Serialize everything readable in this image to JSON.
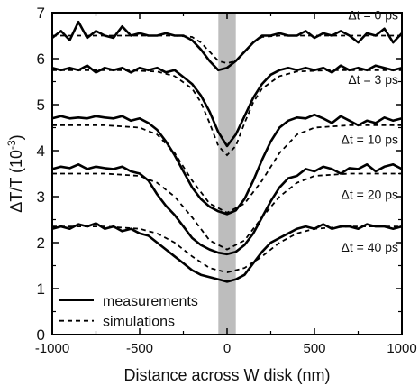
{
  "chart_data": {
    "type": "line",
    "title": "",
    "xlabel": "Distance across W disk (nm)",
    "ylabel_main": "ΔT/T (10",
    "ylabel_exp": "-3",
    "ylabel_close": ")",
    "xlim": [
      -1000,
      1000
    ],
    "ylim": [
      0,
      7
    ],
    "x_ticks": [
      -1000,
      -500,
      0,
      500,
      1000
    ],
    "y_ticks": [
      0,
      1,
      2,
      3,
      4,
      5,
      6,
      7
    ],
    "x_tick_labels": [
      "-1000",
      "-500",
      "0",
      "500",
      "1000"
    ],
    "y_tick_labels": [
      "0",
      "1",
      "2",
      "3",
      "4",
      "5",
      "6",
      "7"
    ],
    "shaded_band": {
      "x_start": -50,
      "x_end": 50,
      "color": "#bdbdbd"
    },
    "legend": {
      "placement": "bottom-left",
      "entries": [
        {
          "label": "measurements",
          "style": "solid"
        },
        {
          "label": "simulations",
          "style": "dashed"
        }
      ]
    },
    "series": [
      {
        "label": "Δt = 0 ps",
        "measurement": {
          "x": [
            -1000,
            -950,
            -900,
            -850,
            -800,
            -750,
            -700,
            -650,
            -600,
            -550,
            -500,
            -450,
            -400,
            -350,
            -300,
            -250,
            -200,
            -150,
            -100,
            -50,
            0,
            50,
            100,
            150,
            200,
            250,
            300,
            350,
            400,
            450,
            500,
            550,
            600,
            650,
            700,
            750,
            800,
            850,
            900,
            950,
            1000
          ],
          "y": [
            6.45,
            6.6,
            6.4,
            6.8,
            6.45,
            6.6,
            6.5,
            6.45,
            6.7,
            6.5,
            6.55,
            6.5,
            6.5,
            6.55,
            6.5,
            6.5,
            6.4,
            6.2,
            5.95,
            5.75,
            5.8,
            5.95,
            6.15,
            6.35,
            6.5,
            6.5,
            6.55,
            6.5,
            6.5,
            6.6,
            6.45,
            6.55,
            6.5,
            6.6,
            6.5,
            6.35,
            6.55,
            6.5,
            6.65,
            6.35,
            6.55
          ]
        },
        "simulation": {
          "x": [
            -1000,
            -500,
            -300,
            -200,
            -150,
            -100,
            -50,
            0,
            50,
            100,
            150,
            200,
            300,
            500,
            1000
          ],
          "y": [
            6.5,
            6.5,
            6.5,
            6.47,
            6.35,
            6.15,
            5.95,
            5.9,
            5.95,
            6.15,
            6.35,
            6.47,
            6.5,
            6.5,
            6.5
          ]
        }
      },
      {
        "label": "Δt = 3 ps",
        "measurement": {
          "x": [
            -1000,
            -950,
            -900,
            -850,
            -800,
            -750,
            -700,
            -650,
            -600,
            -550,
            -500,
            -450,
            -400,
            -350,
            -300,
            -250,
            -200,
            -150,
            -100,
            -50,
            0,
            50,
            100,
            150,
            200,
            250,
            300,
            350,
            400,
            450,
            500,
            550,
            600,
            650,
            700,
            750,
            800,
            850,
            900,
            950,
            1000
          ],
          "y": [
            5.8,
            5.75,
            5.8,
            5.75,
            5.85,
            5.7,
            5.8,
            5.75,
            5.8,
            5.7,
            5.8,
            5.75,
            5.8,
            5.7,
            5.75,
            5.6,
            5.45,
            5.2,
            4.85,
            4.4,
            4.1,
            4.35,
            4.75,
            5.15,
            5.45,
            5.65,
            5.75,
            5.8,
            5.75,
            5.8,
            5.75,
            5.8,
            5.7,
            5.85,
            5.75,
            5.8,
            5.75,
            5.85,
            5.8,
            5.75,
            5.8
          ]
        },
        "simulation": {
          "x": [
            -1000,
            -600,
            -400,
            -300,
            -200,
            -150,
            -100,
            -50,
            0,
            50,
            100,
            150,
            200,
            300,
            400,
            600,
            1000
          ],
          "y": [
            5.75,
            5.75,
            5.72,
            5.62,
            5.35,
            5.05,
            4.6,
            4.1,
            3.9,
            4.1,
            4.6,
            5.05,
            5.35,
            5.62,
            5.72,
            5.75,
            5.75
          ]
        }
      },
      {
        "label": "Δt = 10 ps",
        "measurement": {
          "x": [
            -1000,
            -950,
            -900,
            -850,
            -800,
            -750,
            -700,
            -650,
            -600,
            -550,
            -500,
            -450,
            -400,
            -350,
            -300,
            -250,
            -200,
            -150,
            -100,
            -50,
            0,
            50,
            100,
            150,
            200,
            250,
            300,
            350,
            400,
            450,
            500,
            550,
            600,
            650,
            700,
            750,
            800,
            850,
            900,
            950,
            1000
          ],
          "y": [
            4.7,
            4.75,
            4.7,
            4.72,
            4.7,
            4.75,
            4.72,
            4.7,
            4.75,
            4.65,
            4.7,
            4.6,
            4.45,
            4.2,
            3.9,
            3.55,
            3.2,
            2.95,
            2.78,
            2.68,
            2.62,
            2.7,
            2.95,
            3.35,
            3.8,
            4.2,
            4.5,
            4.65,
            4.72,
            4.7,
            4.78,
            4.7,
            4.6,
            4.75,
            4.65,
            4.55,
            4.65,
            4.6,
            4.72,
            4.65,
            4.7
          ]
        },
        "simulation": {
          "x": [
            -1000,
            -700,
            -500,
            -400,
            -300,
            -200,
            -100,
            0,
            100,
            200,
            300,
            400,
            500,
            700,
            1000
          ],
          "y": [
            4.55,
            4.55,
            4.5,
            4.35,
            3.95,
            3.35,
            2.85,
            2.65,
            2.85,
            3.35,
            3.95,
            4.35,
            4.5,
            4.55,
            4.55
          ]
        }
      },
      {
        "label": "Δt = 20 ps",
        "measurement": {
          "x": [
            -1000,
            -950,
            -900,
            -850,
            -800,
            -750,
            -700,
            -650,
            -600,
            -550,
            -500,
            -450,
            -400,
            -350,
            -300,
            -250,
            -200,
            -150,
            -100,
            -50,
            0,
            50,
            100,
            150,
            200,
            250,
            300,
            350,
            400,
            450,
            500,
            550,
            600,
            650,
            700,
            750,
            800,
            850,
            900,
            950,
            1000
          ],
          "y": [
            3.6,
            3.65,
            3.62,
            3.7,
            3.6,
            3.65,
            3.62,
            3.6,
            3.65,
            3.55,
            3.5,
            3.35,
            3.05,
            2.8,
            2.6,
            2.35,
            2.1,
            1.95,
            1.85,
            1.78,
            1.75,
            1.8,
            1.95,
            2.2,
            2.55,
            2.9,
            3.2,
            3.4,
            3.45,
            3.6,
            3.55,
            3.65,
            3.6,
            3.5,
            3.62,
            3.6,
            3.7,
            3.55,
            3.65,
            3.7,
            3.6
          ]
        },
        "simulation": {
          "x": [
            -1000,
            -700,
            -500,
            -400,
            -300,
            -200,
            -100,
            0,
            100,
            200,
            300,
            400,
            500,
            700,
            1000
          ],
          "y": [
            3.5,
            3.5,
            3.45,
            3.3,
            3.0,
            2.55,
            2.05,
            1.85,
            2.05,
            2.55,
            3.0,
            3.3,
            3.45,
            3.5,
            3.5
          ]
        }
      },
      {
        "label": "Δt = 40 ps",
        "measurement": {
          "x": [
            -1000,
            -950,
            -900,
            -850,
            -800,
            -750,
            -700,
            -650,
            -600,
            -550,
            -500,
            -450,
            -400,
            -350,
            -300,
            -250,
            -200,
            -150,
            -100,
            -50,
            0,
            50,
            100,
            150,
            200,
            250,
            300,
            350,
            400,
            450,
            500,
            550,
            600,
            650,
            700,
            750,
            800,
            850,
            900,
            950,
            1000
          ],
          "y": [
            2.3,
            2.35,
            2.3,
            2.4,
            2.35,
            2.42,
            2.3,
            2.35,
            2.25,
            2.3,
            2.2,
            2.15,
            2.0,
            1.85,
            1.7,
            1.55,
            1.4,
            1.3,
            1.25,
            1.2,
            1.15,
            1.2,
            1.3,
            1.55,
            1.8,
            2.0,
            2.1,
            2.2,
            2.3,
            2.35,
            2.3,
            2.4,
            2.3,
            2.35,
            2.35,
            2.3,
            2.4,
            2.35,
            2.35,
            2.3,
            2.35
          ]
        },
        "simulation": {
          "x": [
            -1000,
            -700,
            -500,
            -400,
            -300,
            -200,
            -100,
            0,
            100,
            200,
            300,
            400,
            500,
            700,
            1000
          ],
          "y": [
            2.35,
            2.35,
            2.3,
            2.2,
            2.0,
            1.7,
            1.45,
            1.35,
            1.45,
            1.7,
            2.0,
            2.2,
            2.3,
            2.35,
            2.35
          ]
        }
      }
    ],
    "series_label_y": [
      6.95,
      5.55,
      4.25,
      3.05,
      1.9
    ]
  }
}
